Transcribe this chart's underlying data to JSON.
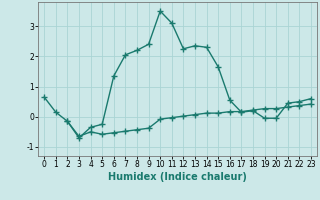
{
  "xlabel": "Humidex (Indice chaleur)",
  "background_color": "#cce8e8",
  "grid_color": "#aad4d4",
  "line_color": "#1a7a6e",
  "line1_x": [
    0,
    1,
    2,
    3,
    4,
    5,
    6,
    7,
    8,
    9,
    10,
    11,
    12,
    13,
    14,
    15,
    16,
    17,
    18,
    19,
    20,
    21,
    22,
    23
  ],
  "line1_y": [
    0.65,
    0.15,
    -0.15,
    -0.7,
    -0.35,
    -0.25,
    1.35,
    2.05,
    2.2,
    2.4,
    3.5,
    3.1,
    2.25,
    2.35,
    2.3,
    1.65,
    0.55,
    0.15,
    0.2,
    -0.05,
    -0.05,
    0.45,
    0.5,
    0.6
  ],
  "line2_x": [
    2,
    3,
    4,
    5,
    6,
    7,
    8,
    9,
    10,
    11,
    12,
    13,
    14,
    15,
    16,
    17,
    18,
    19,
    20,
    21,
    22,
    23
  ],
  "line2_y": [
    -0.15,
    -0.65,
    -0.5,
    -0.58,
    -0.53,
    -0.48,
    -0.43,
    -0.38,
    -0.08,
    -0.03,
    0.02,
    0.07,
    0.12,
    0.12,
    0.17,
    0.17,
    0.22,
    0.27,
    0.27,
    0.32,
    0.37,
    0.42
  ],
  "xlim": [
    -0.5,
    23.5
  ],
  "ylim": [
    -1.3,
    3.8
  ],
  "yticks": [
    -1,
    0,
    1,
    2,
    3
  ],
  "xticks": [
    0,
    1,
    2,
    3,
    4,
    5,
    6,
    7,
    8,
    9,
    10,
    11,
    12,
    13,
    14,
    15,
    16,
    17,
    18,
    19,
    20,
    21,
    22,
    23
  ],
  "marker": "+",
  "markersize": 4,
  "linewidth": 1.0,
  "tick_fontsize": 5.5,
  "xlabel_fontsize": 7
}
